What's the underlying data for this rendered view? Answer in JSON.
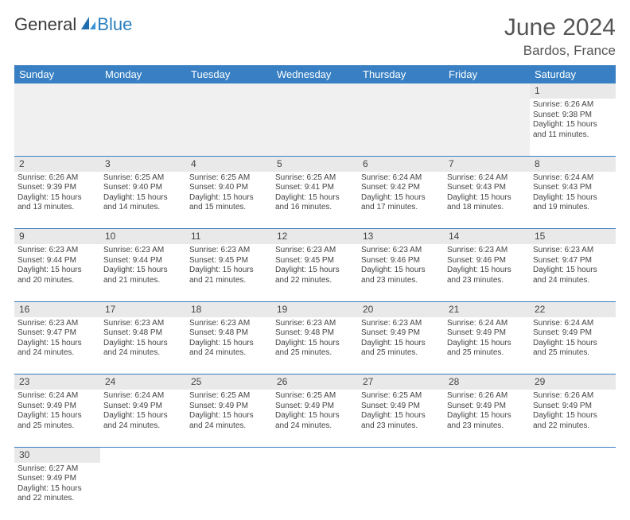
{
  "brand": {
    "text1": "General",
    "text2": "Blue"
  },
  "title": {
    "month": "June 2024",
    "location": "Bardos, France"
  },
  "colors": {
    "headerBg": "#3880c3",
    "headerText": "#ffffff",
    "dateRowBg": "#e9e9e9",
    "border": "#3880c3",
    "bodyText": "#444444",
    "titleText": "#555555"
  },
  "dayHeaders": [
    "Sunday",
    "Monday",
    "Tuesday",
    "Wednesday",
    "Thursday",
    "Friday",
    "Saturday"
  ],
  "weeks": [
    {
      "dates": [
        "",
        "",
        "",
        "",
        "",
        "",
        "1"
      ],
      "cells": [
        null,
        null,
        null,
        null,
        null,
        null,
        {
          "sunrise": "Sunrise: 6:26 AM",
          "sunset": "Sunset: 9:38 PM",
          "daylight1": "Daylight: 15 hours",
          "daylight2": "and 11 minutes."
        }
      ]
    },
    {
      "dates": [
        "2",
        "3",
        "4",
        "5",
        "6",
        "7",
        "8"
      ],
      "cells": [
        {
          "sunrise": "Sunrise: 6:26 AM",
          "sunset": "Sunset: 9:39 PM",
          "daylight1": "Daylight: 15 hours",
          "daylight2": "and 13 minutes."
        },
        {
          "sunrise": "Sunrise: 6:25 AM",
          "sunset": "Sunset: 9:40 PM",
          "daylight1": "Daylight: 15 hours",
          "daylight2": "and 14 minutes."
        },
        {
          "sunrise": "Sunrise: 6:25 AM",
          "sunset": "Sunset: 9:40 PM",
          "daylight1": "Daylight: 15 hours",
          "daylight2": "and 15 minutes."
        },
        {
          "sunrise": "Sunrise: 6:25 AM",
          "sunset": "Sunset: 9:41 PM",
          "daylight1": "Daylight: 15 hours",
          "daylight2": "and 16 minutes."
        },
        {
          "sunrise": "Sunrise: 6:24 AM",
          "sunset": "Sunset: 9:42 PM",
          "daylight1": "Daylight: 15 hours",
          "daylight2": "and 17 minutes."
        },
        {
          "sunrise": "Sunrise: 6:24 AM",
          "sunset": "Sunset: 9:43 PM",
          "daylight1": "Daylight: 15 hours",
          "daylight2": "and 18 minutes."
        },
        {
          "sunrise": "Sunrise: 6:24 AM",
          "sunset": "Sunset: 9:43 PM",
          "daylight1": "Daylight: 15 hours",
          "daylight2": "and 19 minutes."
        }
      ]
    },
    {
      "dates": [
        "9",
        "10",
        "11",
        "12",
        "13",
        "14",
        "15"
      ],
      "cells": [
        {
          "sunrise": "Sunrise: 6:23 AM",
          "sunset": "Sunset: 9:44 PM",
          "daylight1": "Daylight: 15 hours",
          "daylight2": "and 20 minutes."
        },
        {
          "sunrise": "Sunrise: 6:23 AM",
          "sunset": "Sunset: 9:44 PM",
          "daylight1": "Daylight: 15 hours",
          "daylight2": "and 21 minutes."
        },
        {
          "sunrise": "Sunrise: 6:23 AM",
          "sunset": "Sunset: 9:45 PM",
          "daylight1": "Daylight: 15 hours",
          "daylight2": "and 21 minutes."
        },
        {
          "sunrise": "Sunrise: 6:23 AM",
          "sunset": "Sunset: 9:45 PM",
          "daylight1": "Daylight: 15 hours",
          "daylight2": "and 22 minutes."
        },
        {
          "sunrise": "Sunrise: 6:23 AM",
          "sunset": "Sunset: 9:46 PM",
          "daylight1": "Daylight: 15 hours",
          "daylight2": "and 23 minutes."
        },
        {
          "sunrise": "Sunrise: 6:23 AM",
          "sunset": "Sunset: 9:46 PM",
          "daylight1": "Daylight: 15 hours",
          "daylight2": "and 23 minutes."
        },
        {
          "sunrise": "Sunrise: 6:23 AM",
          "sunset": "Sunset: 9:47 PM",
          "daylight1": "Daylight: 15 hours",
          "daylight2": "and 24 minutes."
        }
      ]
    },
    {
      "dates": [
        "16",
        "17",
        "18",
        "19",
        "20",
        "21",
        "22"
      ],
      "cells": [
        {
          "sunrise": "Sunrise: 6:23 AM",
          "sunset": "Sunset: 9:47 PM",
          "daylight1": "Daylight: 15 hours",
          "daylight2": "and 24 minutes."
        },
        {
          "sunrise": "Sunrise: 6:23 AM",
          "sunset": "Sunset: 9:48 PM",
          "daylight1": "Daylight: 15 hours",
          "daylight2": "and 24 minutes."
        },
        {
          "sunrise": "Sunrise: 6:23 AM",
          "sunset": "Sunset: 9:48 PM",
          "daylight1": "Daylight: 15 hours",
          "daylight2": "and 24 minutes."
        },
        {
          "sunrise": "Sunrise: 6:23 AM",
          "sunset": "Sunset: 9:48 PM",
          "daylight1": "Daylight: 15 hours",
          "daylight2": "and 25 minutes."
        },
        {
          "sunrise": "Sunrise: 6:23 AM",
          "sunset": "Sunset: 9:49 PM",
          "daylight1": "Daylight: 15 hours",
          "daylight2": "and 25 minutes."
        },
        {
          "sunrise": "Sunrise: 6:24 AM",
          "sunset": "Sunset: 9:49 PM",
          "daylight1": "Daylight: 15 hours",
          "daylight2": "and 25 minutes."
        },
        {
          "sunrise": "Sunrise: 6:24 AM",
          "sunset": "Sunset: 9:49 PM",
          "daylight1": "Daylight: 15 hours",
          "daylight2": "and 25 minutes."
        }
      ]
    },
    {
      "dates": [
        "23",
        "24",
        "25",
        "26",
        "27",
        "28",
        "29"
      ],
      "cells": [
        {
          "sunrise": "Sunrise: 6:24 AM",
          "sunset": "Sunset: 9:49 PM",
          "daylight1": "Daylight: 15 hours",
          "daylight2": "and 25 minutes."
        },
        {
          "sunrise": "Sunrise: 6:24 AM",
          "sunset": "Sunset: 9:49 PM",
          "daylight1": "Daylight: 15 hours",
          "daylight2": "and 24 minutes."
        },
        {
          "sunrise": "Sunrise: 6:25 AM",
          "sunset": "Sunset: 9:49 PM",
          "daylight1": "Daylight: 15 hours",
          "daylight2": "and 24 minutes."
        },
        {
          "sunrise": "Sunrise: 6:25 AM",
          "sunset": "Sunset: 9:49 PM",
          "daylight1": "Daylight: 15 hours",
          "daylight2": "and 24 minutes."
        },
        {
          "sunrise": "Sunrise: 6:25 AM",
          "sunset": "Sunset: 9:49 PM",
          "daylight1": "Daylight: 15 hours",
          "daylight2": "and 23 minutes."
        },
        {
          "sunrise": "Sunrise: 6:26 AM",
          "sunset": "Sunset: 9:49 PM",
          "daylight1": "Daylight: 15 hours",
          "daylight2": "and 23 minutes."
        },
        {
          "sunrise": "Sunrise: 6:26 AM",
          "sunset": "Sunset: 9:49 PM",
          "daylight1": "Daylight: 15 hours",
          "daylight2": "and 22 minutes."
        }
      ]
    },
    {
      "dates": [
        "30",
        "",
        "",
        "",
        "",
        "",
        ""
      ],
      "cells": [
        {
          "sunrise": "Sunrise: 6:27 AM",
          "sunset": "Sunset: 9:49 PM",
          "daylight1": "Daylight: 15 hours",
          "daylight2": "and 22 minutes."
        },
        null,
        null,
        null,
        null,
        null,
        null
      ]
    }
  ]
}
